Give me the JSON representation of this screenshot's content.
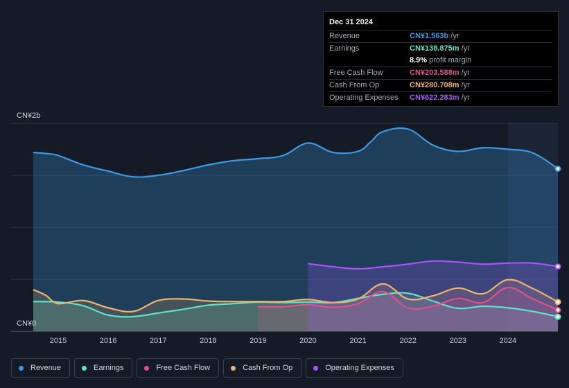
{
  "tooltip": {
    "date": "Dec 31 2024",
    "rows": [
      {
        "label": "Revenue",
        "value": "CN¥1.563b",
        "unit": "/yr",
        "color": "#3b9ae1"
      },
      {
        "label": "Earnings",
        "value": "CN¥138.875m",
        "unit": "/yr",
        "color": "#5ee3c6"
      },
      {
        "label": "",
        "value": "8.9%",
        "unit": "profit margin",
        "color": "#ffffff"
      },
      {
        "label": "Free Cash Flow",
        "value": "CN¥203.588m",
        "unit": "/yr",
        "color": "#e0508a"
      },
      {
        "label": "Cash From Op",
        "value": "CN¥280.708m",
        "unit": "/yr",
        "color": "#f0b36a"
      },
      {
        "label": "Operating Expenses",
        "value": "CN¥622.283m",
        "unit": "/yr",
        "color": "#a855f7"
      }
    ]
  },
  "chart_data": {
    "type": "area",
    "ylabel_top": "CN¥2b",
    "ylabel_bottom": "CN¥0",
    "ylim": [
      0,
      2000
    ],
    "xlim": [
      2014.5,
      2025.0
    ],
    "forecast_start": 2024.0,
    "x_ticks": [
      "2015",
      "2016",
      "2017",
      "2018",
      "2019",
      "2020",
      "2021",
      "2022",
      "2023",
      "2024"
    ],
    "series": [
      {
        "name": "Revenue",
        "color": "#3b9ae1",
        "x": [
          2014.5,
          2014.75,
          2015.0,
          2015.5,
          2016.0,
          2016.5,
          2017.0,
          2017.5,
          2018.0,
          2018.5,
          2019.0,
          2019.5,
          2020.0,
          2020.5,
          2021.0,
          2021.25,
          2021.5,
          2022.0,
          2022.5,
          2023.0,
          2023.5,
          2024.0,
          2024.5,
          2025.0
        ],
        "values": [
          1720,
          1710,
          1690,
          1600,
          1540,
          1485,
          1500,
          1545,
          1600,
          1640,
          1660,
          1690,
          1810,
          1720,
          1730,
          1820,
          1920,
          1945,
          1790,
          1730,
          1765,
          1750,
          1715,
          1563
        ]
      },
      {
        "name": "Earnings",
        "color": "#5ee3c6",
        "x": [
          2014.5,
          2015.0,
          2015.5,
          2016.0,
          2016.5,
          2017.0,
          2017.5,
          2018.0,
          2018.5,
          2019.0,
          2019.5,
          2020.0,
          2020.5,
          2021.0,
          2021.5,
          2022.0,
          2022.5,
          2023.0,
          2023.5,
          2024.0,
          2024.5,
          2025.0
        ],
        "values": [
          285,
          280,
          245,
          155,
          140,
          175,
          210,
          250,
          265,
          280,
          275,
          280,
          275,
          315,
          355,
          365,
          290,
          220,
          240,
          225,
          190,
          139
        ]
      },
      {
        "name": "Free Cash Flow",
        "color": "#e0508a",
        "x": [
          2019.0,
          2019.5,
          2020.0,
          2020.5,
          2021.0,
          2021.5,
          2022.0,
          2022.5,
          2023.0,
          2023.5,
          2024.0,
          2024.5,
          2025.0
        ],
        "values": [
          235,
          235,
          255,
          230,
          265,
          380,
          225,
          240,
          315,
          275,
          420,
          310,
          204
        ]
      },
      {
        "name": "Cash From Op",
        "color": "#f0b36a",
        "x": [
          2014.5,
          2014.75,
          2015.0,
          2015.5,
          2016.0,
          2016.5,
          2017.0,
          2017.5,
          2018.0,
          2018.5,
          2019.0,
          2019.5,
          2020.0,
          2020.5,
          2021.0,
          2021.5,
          2022.0,
          2022.5,
          2023.0,
          2023.5,
          2024.0,
          2024.5,
          2025.0
        ],
        "values": [
          400,
          345,
          265,
          295,
          225,
          190,
          295,
          310,
          290,
          285,
          285,
          285,
          305,
          275,
          310,
          455,
          310,
          340,
          415,
          360,
          495,
          410,
          281
        ]
      },
      {
        "name": "Operating Expenses",
        "color": "#a855f7",
        "x": [
          2020.0,
          2020.5,
          2021.0,
          2021.5,
          2022.0,
          2022.5,
          2023.0,
          2023.5,
          2024.0,
          2024.5,
          2025.0
        ],
        "values": [
          650,
          620,
          600,
          620,
          645,
          675,
          665,
          645,
          655,
          655,
          622
        ]
      }
    ]
  },
  "legend": [
    {
      "label": "Revenue",
      "color": "#3b9ae1"
    },
    {
      "label": "Earnings",
      "color": "#5ee3c6"
    },
    {
      "label": "Free Cash Flow",
      "color": "#e0508a"
    },
    {
      "label": "Cash From Op",
      "color": "#f0b36a"
    },
    {
      "label": "Operating Expenses",
      "color": "#a855f7"
    }
  ]
}
